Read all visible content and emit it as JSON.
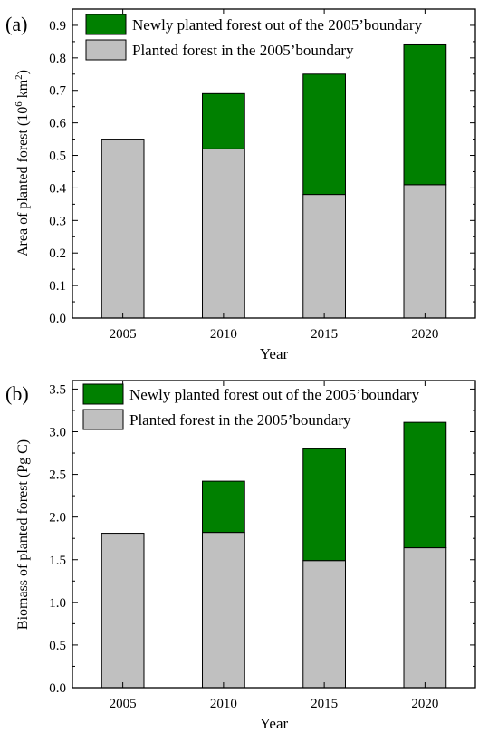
{
  "colors": {
    "new_forest": "#008000",
    "existing_forest": "#c0c0c0",
    "outline": "#000000"
  },
  "chart_data": [
    {
      "type": "bar",
      "stacked": true,
      "panel_label": "(a)",
      "categories": [
        "2005",
        "2010",
        "2015",
        "2020"
      ],
      "xlabel": "Year",
      "ylabel_main": "Area of planted forest (10",
      "ylabel_exp1": "6",
      "ylabel_unit": " km",
      "ylabel_exp2": "2",
      "ylabel_close": ")",
      "ylim": [
        0,
        0.95
      ],
      "yticks": [
        0.0,
        0.1,
        0.2,
        0.3,
        0.4,
        0.5,
        0.6,
        0.7,
        0.8,
        0.9
      ],
      "ytick_labels": [
        "0.0",
        "0.1",
        "0.2",
        "0.3",
        "0.4",
        "0.5",
        "0.6",
        "0.7",
        "0.8",
        "0.9"
      ],
      "legend_position": "top-center",
      "series": [
        {
          "name": "Planted forest in the 2005’boundary",
          "color": "#c0c0c0",
          "values": [
            0.55,
            0.52,
            0.38,
            0.41
          ]
        },
        {
          "name": "Newly planted forest out of the 2005’boundary",
          "color": "#008000",
          "values": [
            0.0,
            0.17,
            0.37,
            0.43
          ]
        }
      ]
    },
    {
      "type": "bar",
      "stacked": true,
      "panel_label": "(b)",
      "categories": [
        "2005",
        "2010",
        "2015",
        "2020"
      ],
      "xlabel": "Year",
      "ylabel": "Biomass of planted forest (Pg C)",
      "ylim": [
        0,
        3.6
      ],
      "yticks": [
        0.0,
        0.5,
        1.0,
        1.5,
        2.0,
        2.5,
        3.0,
        3.5
      ],
      "ytick_labels": [
        "0.0",
        "0.5",
        "1.0",
        "1.5",
        "2.0",
        "2.5",
        "3.0",
        "3.5"
      ],
      "legend_position": "top-center",
      "series": [
        {
          "name": "Planted forest in the 2005’boundary",
          "color": "#c0c0c0",
          "values": [
            1.81,
            1.82,
            1.49,
            1.64
          ]
        },
        {
          "name": "Newly planted forest out of the 2005’boundary",
          "color": "#008000",
          "values": [
            0.0,
            0.6,
            1.31,
            1.47
          ]
        }
      ]
    }
  ]
}
